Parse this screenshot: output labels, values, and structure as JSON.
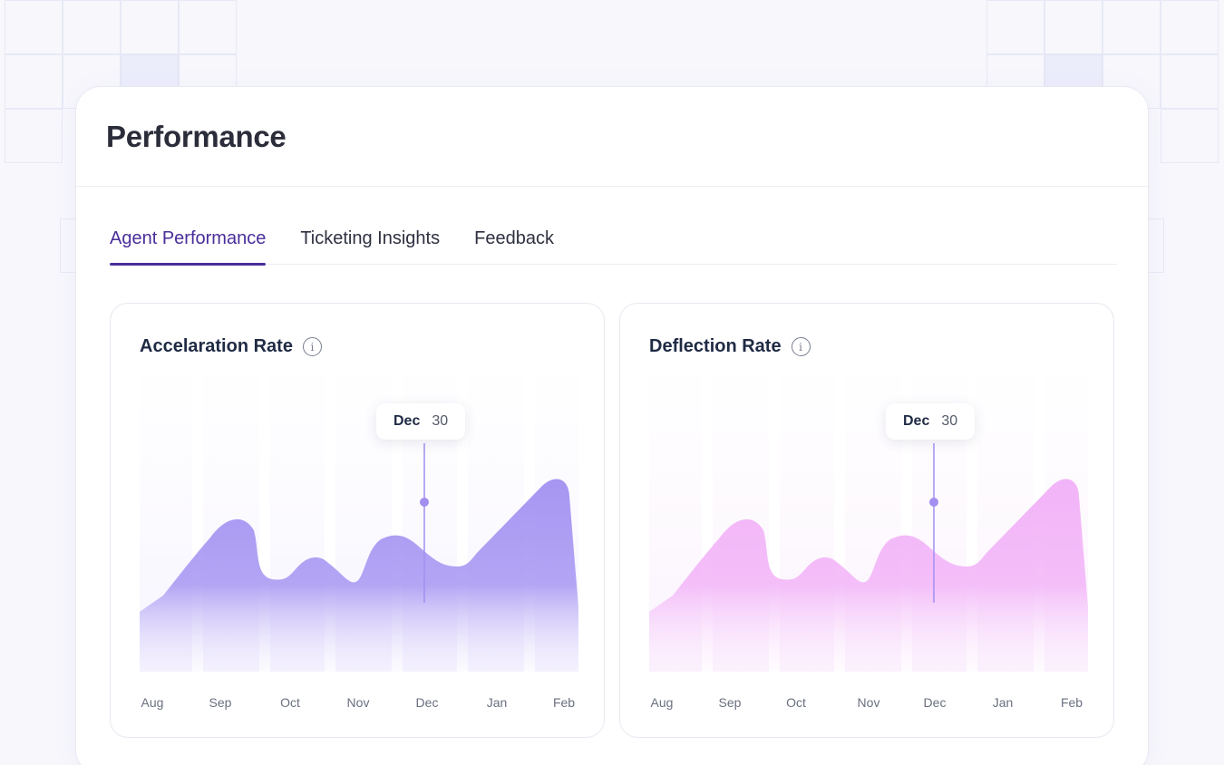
{
  "page": {
    "title": "Performance",
    "tabs": [
      "Agent Performance",
      "Ticketing Insights",
      "Feedback"
    ]
  },
  "colors": {
    "accent": "#4a2e9a",
    "purple_area": "#a796f2",
    "pink_area": "#f2b4f8",
    "marker": "#a28ff0"
  },
  "charts": [
    {
      "title": "Accelaration Rate",
      "info_icon": "info-icon",
      "tooltip": {
        "month": "Dec",
        "value": "30"
      },
      "months": [
        "Aug",
        "Sep",
        "Oct",
        "Nov",
        "Dec",
        "Jan",
        "Feb"
      ]
    },
    {
      "title": "Deflection Rate",
      "info_icon": "info-icon",
      "tooltip": {
        "month": "Dec",
        "value": "30"
      },
      "months": [
        "Aug",
        "Sep",
        "Oct",
        "Nov",
        "Dec",
        "Jan",
        "Feb"
      ]
    }
  ],
  "chart_data": [
    {
      "type": "area",
      "title": "Accelaration Rate",
      "categories": [
        "Aug",
        "Sep",
        "Oct",
        "Nov",
        "Dec",
        "Jan",
        "Feb"
      ],
      "highlight": {
        "category": "Dec",
        "value": 30
      },
      "grid": false
    },
    {
      "type": "area",
      "title": "Deflection Rate",
      "categories": [
        "Aug",
        "Sep",
        "Oct",
        "Nov",
        "Dec",
        "Jan",
        "Feb"
      ],
      "highlight": {
        "category": "Dec",
        "value": 30
      },
      "grid": false
    }
  ]
}
